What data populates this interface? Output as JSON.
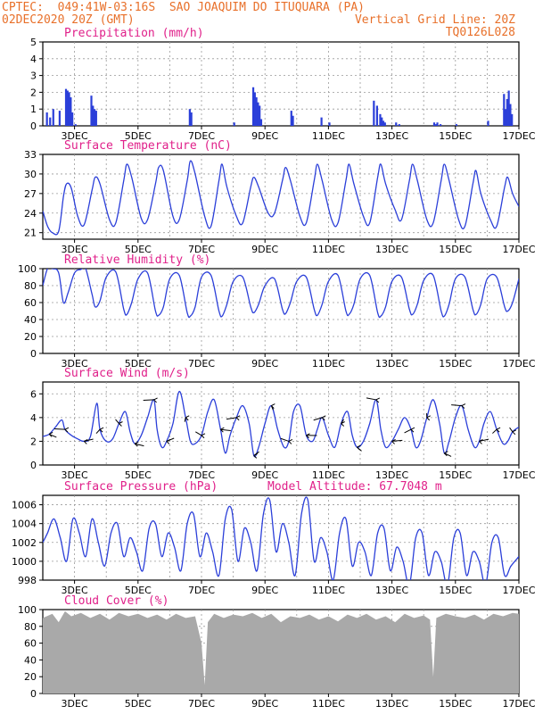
{
  "header": {
    "line1_left": "CPTEC:  049:41W-03:16S  SAO JOAQUIM DO ITUQUARA (PA)",
    "line2_left": "02DEC2020 20Z (GMT)",
    "line2_right": "Vertical Grid Line: 20Z",
    "line3_right": "TQ0126L028"
  },
  "colors": {
    "line": "#2b3fd9",
    "bar": "#2b3fd9",
    "cloud": "#a9a9a9",
    "title": "#e0208a",
    "header": "#e8702a"
  },
  "date_labels": [
    "3DEC",
    "5DEC",
    "7DEC",
    "9DEC",
    "11DEC",
    "13DEC",
    "15DEC",
    "17DEC"
  ],
  "chart_data": [
    {
      "id": "precip",
      "type": "bar",
      "title": "Precipitation (mm/h)",
      "ylim": [
        0,
        5
      ],
      "yticks": [
        0,
        1,
        2,
        3,
        4,
        5
      ],
      "x_days": [
        0.1,
        0.2,
        0.3,
        0.5,
        0.7,
        0.75,
        0.8,
        0.85,
        0.9,
        1.0,
        1.5,
        1.55,
        1.6,
        1.65,
        4.6,
        4.65,
        6.0,
        6.6,
        6.65,
        6.7,
        6.75,
        6.8,
        6.85,
        7.8,
        7.85,
        8.75,
        9.0,
        10.4,
        10.5,
        10.6,
        10.65,
        10.7,
        10.75,
        11.1,
        11.2,
        12.3,
        12.35,
        12.4,
        12.5,
        13.0,
        14.0,
        14.5,
        14.55,
        14.6,
        14.65,
        14.7,
        14.75
      ],
      "values": [
        0.8,
        0.5,
        1.0,
        0.9,
        2.2,
        2.1,
        2.0,
        1.7,
        0.8,
        0.1,
        1.8,
        1.2,
        1.0,
        0.9,
        1.0,
        0.8,
        0.2,
        2.3,
        2.0,
        1.7,
        1.4,
        1.2,
        0.4,
        0.9,
        0.6,
        0.5,
        0.2,
        1.5,
        1.2,
        0.7,
        0.5,
        0.3,
        0.2,
        0.2,
        0.1,
        0.2,
        0.1,
        0.2,
        0.1,
        0.1,
        0.3,
        1.9,
        1.0,
        1.6,
        2.1,
        1.3,
        0.7
      ]
    },
    {
      "id": "temp",
      "type": "line",
      "title": "Surface Temperature (nC)",
      "ylim": [
        20,
        33
      ],
      "yticks": [
        21,
        24,
        27,
        30,
        33
      ],
      "x_days": [
        0,
        0.15,
        0.3,
        0.5,
        0.65,
        0.75,
        0.9,
        1.1,
        1.3,
        1.55,
        1.65,
        1.8,
        2.1,
        2.3,
        2.55,
        2.65,
        2.8,
        3.1,
        3.3,
        3.55,
        3.65,
        3.8,
        4.1,
        4.3,
        4.55,
        4.65,
        4.8,
        5.1,
        5.3,
        5.55,
        5.65,
        5.8,
        6.1,
        6.3,
        6.55,
        6.65,
        6.8,
        7.1,
        7.3,
        7.55,
        7.65,
        7.8,
        8.1,
        8.3,
        8.55,
        8.65,
        8.8,
        9.1,
        9.3,
        9.55,
        9.65,
        9.8,
        10.1,
        10.3,
        10.55,
        10.65,
        10.8,
        11.1,
        11.3,
        11.55,
        11.65,
        11.8,
        12.1,
        12.3,
        12.55,
        12.65,
        12.8,
        13.1,
        13.3,
        13.55,
        13.65,
        13.8,
        14.1,
        14.3,
        14.55,
        14.65,
        14.8,
        15.0
      ],
      "values": [
        24.3,
        22.0,
        21.0,
        21.2,
        26.5,
        28.5,
        27.8,
        23.5,
        22.2,
        27.5,
        29.5,
        28.5,
        23.0,
        22.5,
        29.0,
        31.5,
        29.5,
        23.2,
        23.0,
        28.5,
        31.0,
        30.5,
        23.5,
        23.0,
        29.0,
        32.0,
        30.0,
        23.5,
        22.0,
        29.0,
        31.5,
        28.0,
        23.5,
        22.5,
        28.0,
        29.5,
        28.0,
        24.0,
        24.0,
        29.0,
        31.0,
        29.0,
        23.5,
        22.5,
        29.0,
        31.5,
        29.0,
        23.0,
        22.5,
        29.0,
        31.5,
        28.5,
        23.5,
        22.5,
        29.5,
        31.5,
        28.5,
        24.5,
        23.0,
        29.0,
        31.5,
        29.0,
        23.0,
        22.5,
        29.0,
        31.5,
        29.0,
        23.0,
        22.0,
        28.5,
        30.5,
        27.0,
        23.0,
        22.0,
        28.0,
        29.5,
        27.0,
        25.0
      ]
    },
    {
      "id": "rh",
      "type": "line",
      "title": "Relative Humidity (%)",
      "ylim": [
        0,
        100
      ],
      "yticks": [
        0,
        20,
        40,
        60,
        80,
        100
      ],
      "x_days": [
        0,
        0.15,
        0.3,
        0.5,
        0.65,
        0.8,
        1.0,
        1.2,
        1.35,
        1.55,
        1.65,
        1.8,
        2.0,
        2.3,
        2.55,
        2.65,
        2.8,
        3.0,
        3.3,
        3.55,
        3.65,
        3.8,
        4.0,
        4.3,
        4.55,
        4.65,
        4.8,
        5.0,
        5.3,
        5.55,
        5.65,
        5.8,
        6.0,
        6.3,
        6.55,
        6.65,
        6.8,
        7.0,
        7.3,
        7.55,
        7.65,
        7.8,
        8.0,
        8.3,
        8.55,
        8.65,
        8.8,
        9.0,
        9.3,
        9.55,
        9.65,
        9.8,
        10.0,
        10.3,
        10.55,
        10.65,
        10.8,
        11.0,
        11.3,
        11.55,
        11.65,
        11.8,
        12.0,
        12.3,
        12.55,
        12.65,
        12.8,
        13.0,
        13.3,
        13.55,
        13.65,
        13.8,
        14.0,
        14.3,
        14.55,
        14.65,
        14.8,
        15.0
      ],
      "values": [
        80,
        100,
        100,
        95,
        60,
        72,
        95,
        99,
        100,
        70,
        55,
        62,
        90,
        96,
        52,
        46,
        60,
        88,
        95,
        50,
        45,
        55,
        88,
        92,
        48,
        44,
        55,
        90,
        92,
        50,
        44,
        58,
        85,
        90,
        55,
        48,
        58,
        80,
        88,
        52,
        47,
        60,
        85,
        90,
        52,
        45,
        58,
        85,
        92,
        50,
        46,
        58,
        88,
        92,
        48,
        44,
        55,
        85,
        90,
        52,
        46,
        58,
        86,
        92,
        50,
        44,
        58,
        88,
        90,
        52,
        46,
        58,
        88,
        90,
        55,
        50,
        60,
        88
      ]
    },
    {
      "id": "wind",
      "type": "line",
      "title": "Surface Wind (m/s)",
      "ylim": [
        0,
        7
      ],
      "yticks": [
        0,
        2,
        4,
        6
      ],
      "x_days": [
        0,
        0.2,
        0.4,
        0.6,
        0.7,
        0.9,
        1.1,
        1.3,
        1.5,
        1.7,
        1.8,
        2.0,
        2.2,
        2.4,
        2.6,
        2.75,
        2.9,
        3.1,
        3.3,
        3.5,
        3.6,
        3.75,
        3.9,
        4.1,
        4.3,
        4.5,
        4.65,
        4.8,
        5.0,
        5.2,
        5.4,
        5.6,
        5.75,
        5.9,
        6.1,
        6.3,
        6.5,
        6.65,
        6.8,
        7.0,
        7.2,
        7.4,
        7.6,
        7.75,
        7.9,
        8.1,
        8.3,
        8.5,
        8.65,
        8.8,
        9.0,
        9.2,
        9.4,
        9.6,
        9.75,
        9.9,
        10.1,
        10.3,
        10.5,
        10.65,
        10.8,
        11.0,
        11.2,
        11.4,
        11.6,
        11.75,
        11.9,
        12.1,
        12.3,
        12.5,
        12.65,
        12.8,
        13.0,
        13.2,
        13.4,
        13.6,
        13.75,
        13.9,
        14.1,
        14.3,
        14.5,
        14.65,
        14.8,
        15.0
      ],
      "values": [
        2.4,
        2.6,
        3.2,
        3.8,
        3.0,
        2.5,
        2.2,
        2.0,
        2.4,
        5.2,
        3.0,
        2.0,
        2.2,
        3.5,
        4.5,
        2.8,
        1.8,
        2.5,
        4.0,
        5.5,
        3.0,
        1.5,
        2.0,
        3.5,
        6.2,
        4.0,
        2.0,
        1.8,
        2.5,
        4.5,
        5.5,
        3.0,
        1.0,
        2.5,
        4.0,
        5.0,
        3.5,
        0.8,
        1.5,
        3.5,
        5.0,
        3.0,
        1.5,
        2.0,
        4.5,
        5.0,
        2.5,
        2.0,
        3.0,
        4.0,
        2.5,
        1.5,
        3.5,
        4.5,
        2.5,
        1.5,
        2.0,
        3.5,
        5.5,
        3.0,
        1.5,
        2.0,
        3.0,
        4.0,
        3.0,
        1.5,
        2.0,
        4.0,
        5.5,
        3.5,
        1.0,
        2.0,
        4.0,
        5.0,
        3.0,
        1.5,
        2.0,
        3.5,
        4.5,
        3.0,
        1.8,
        2.0,
        2.8,
        3.2
      ]
    },
    {
      "id": "pressure",
      "type": "line",
      "title": "Surface Pressure (hPa)",
      "annotation": "Model Altitude: 67.7048 m",
      "ylim": [
        998,
        1007
      ],
      "yticks": [
        998,
        1000,
        1002,
        1004,
        1006
      ],
      "x_days": [
        0,
        0.15,
        0.35,
        0.55,
        0.75,
        0.95,
        1.15,
        1.35,
        1.55,
        1.75,
        1.95,
        2.15,
        2.35,
        2.55,
        2.75,
        2.95,
        3.15,
        3.35,
        3.55,
        3.75,
        3.95,
        4.15,
        4.35,
        4.55,
        4.75,
        4.95,
        5.15,
        5.35,
        5.55,
        5.75,
        5.95,
        6.15,
        6.35,
        6.55,
        6.75,
        6.95,
        7.15,
        7.35,
        7.55,
        7.75,
        7.95,
        8.15,
        8.35,
        8.55,
        8.75,
        8.95,
        9.15,
        9.35,
        9.55,
        9.75,
        9.95,
        10.15,
        10.35,
        10.55,
        10.75,
        10.95,
        11.15,
        11.35,
        11.55,
        11.75,
        11.95,
        12.15,
        12.35,
        12.55,
        12.75,
        12.95,
        13.15,
        13.35,
        13.55,
        13.75,
        13.95,
        14.15,
        14.35,
        14.55,
        14.75,
        15.0
      ],
      "values": [
        1002,
        1003,
        1004.5,
        1002.5,
        1000,
        1004.5,
        1003,
        1000.5,
        1004.5,
        1002,
        999.5,
        1003,
        1004,
        1000.5,
        1002.5,
        1001,
        999,
        1003.5,
        1004,
        1000.5,
        1003,
        1001.5,
        999,
        1004,
        1005,
        1000.5,
        1003,
        1001,
        998.5,
        1004.5,
        1005.5,
        1000,
        1003.5,
        1002,
        999,
        1005,
        1006.5,
        1001,
        1004,
        1002,
        998.5,
        1005,
        1006.5,
        1000,
        1002.5,
        1001,
        998,
        1003,
        1004.5,
        999.5,
        1002,
        1001,
        998.5,
        1003,
        1003.5,
        999,
        1001.5,
        1000,
        997.5,
        1002.5,
        1003,
        998.5,
        1001,
        1000,
        997.5,
        1002.5,
        1003,
        998.5,
        1001,
        1000,
        997.5,
        1002,
        1002.5,
        998.5,
        999.5,
        1000.5
      ]
    },
    {
      "id": "cloud",
      "type": "area",
      "title": "Cloud Cover (%)",
      "ylim": [
        0,
        100
      ],
      "yticks": [
        0,
        20,
        40,
        60,
        80,
        100
      ],
      "x_days": [
        0,
        0.3,
        0.5,
        0.7,
        0.9,
        1.2,
        1.5,
        1.8,
        2.1,
        2.4,
        2.7,
        3.0,
        3.3,
        3.6,
        3.9,
        4.2,
        4.5,
        4.8,
        5.0,
        5.1,
        5.2,
        5.4,
        5.7,
        6.0,
        6.3,
        6.6,
        6.9,
        7.2,
        7.5,
        7.8,
        8.1,
        8.4,
        8.7,
        9.0,
        9.3,
        9.6,
        9.9,
        10.2,
        10.5,
        10.8,
        11.1,
        11.4,
        11.7,
        12.0,
        12.2,
        12.3,
        12.4,
        12.7,
        13.0,
        13.3,
        13.6,
        13.9,
        14.2,
        14.5,
        14.8,
        15.0
      ],
      "values": [
        90,
        95,
        85,
        98,
        92,
        96,
        90,
        95,
        88,
        96,
        92,
        95,
        90,
        94,
        88,
        95,
        90,
        92,
        60,
        10,
        85,
        95,
        90,
        94,
        92,
        96,
        90,
        95,
        85,
        92,
        90,
        94,
        88,
        92,
        86,
        94,
        90,
        95,
        88,
        92,
        85,
        95,
        90,
        93,
        88,
        20,
        90,
        95,
        92,
        90,
        94,
        88,
        95,
        92,
        96,
        95
      ]
    }
  ]
}
